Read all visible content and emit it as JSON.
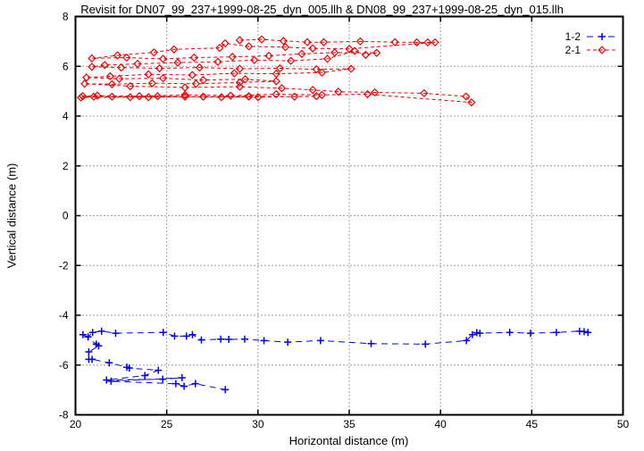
{
  "title": "Revisit for DN07_99_237+1999-08-25_dyn_005.llh & DN08_99_237+1999-08-25_dyn_015.llh",
  "chart_data": {
    "type": "line",
    "title": "Revisit for DN07_99_237+1999-08-25_dyn_005.llh & DN08_99_237+1999-08-25_dyn_015.llh",
    "xlabel": "Horizontal distance (m)",
    "ylabel": "Vertical distance (m)",
    "xlim": [
      20,
      50
    ],
    "ylim": [
      -8,
      8
    ],
    "xticks": [
      20,
      25,
      30,
      35,
      40,
      45,
      50
    ],
    "yticks": [
      -8,
      -6,
      -4,
      -2,
      0,
      2,
      4,
      6,
      8
    ],
    "grid": true,
    "legend_position": "top-right",
    "frame_color": "#000000",
    "grid_color": "#444444",
    "series": [
      {
        "name": "1-2",
        "color": "#0000ee",
        "marker": "plus",
        "linestyle": "dashed",
        "dash": "7,5",
        "points": [
          [
            48.08,
            -4.69
          ],
          [
            47.87,
            -4.66
          ],
          [
            47.62,
            -4.64
          ],
          [
            46.35,
            -4.69
          ],
          [
            44.93,
            -4.72
          ],
          [
            43.79,
            -4.69
          ],
          [
            42.16,
            -4.72
          ],
          [
            41.99,
            -4.7
          ],
          [
            41.75,
            -4.78
          ],
          [
            41.42,
            -5.02
          ],
          [
            39.17,
            -5.16
          ],
          [
            36.2,
            -5.14
          ],
          [
            33.43,
            -5.02
          ],
          [
            31.63,
            -5.08
          ],
          [
            30.33,
            -5.02
          ],
          [
            29.27,
            -4.96
          ],
          [
            28.4,
            -4.97
          ],
          [
            27.96,
            -4.96
          ],
          [
            26.9,
            -4.99
          ],
          [
            26.41,
            -4.78
          ],
          [
            26.08,
            -4.84
          ],
          [
            25.43,
            -4.84
          ],
          [
            24.81,
            -4.69
          ],
          [
            22.2,
            -4.72
          ],
          [
            21.43,
            -4.64
          ],
          [
            20.94,
            -4.69
          ],
          [
            20.69,
            -4.87
          ],
          [
            20.41,
            -4.78
          ],
          [
            21.14,
            -5.16
          ],
          [
            21.27,
            -5.23
          ],
          [
            20.73,
            -5.47
          ],
          [
            20.73,
            -5.77
          ],
          [
            20.91,
            -5.77
          ],
          [
            21.85,
            -5.91
          ],
          [
            22.82,
            -6.09
          ],
          [
            22.95,
            -6.12
          ],
          [
            24.54,
            -6.21
          ],
          [
            23.8,
            -6.42
          ],
          [
            21.7,
            -6.6
          ],
          [
            24.78,
            -6.57
          ],
          [
            25.84,
            -6.51
          ],
          [
            21.95,
            -6.65
          ],
          [
            25.5,
            -6.75
          ],
          [
            25.95,
            -6.85
          ],
          [
            26.57,
            -6.75
          ],
          [
            28.21,
            -6.99
          ]
        ]
      },
      {
        "name": "2-1",
        "color": "#ee0000",
        "marker": "diamond",
        "linestyle": "dashed",
        "dash": "4,3",
        "points": [
          [
            29.0,
            7.05
          ],
          [
            30.2,
            7.08
          ],
          [
            31.4,
            7.02
          ],
          [
            32.7,
            6.97
          ],
          [
            33.6,
            6.97
          ],
          [
            35.6,
            7.0
          ],
          [
            37.5,
            6.97
          ],
          [
            38.7,
            6.96
          ],
          [
            39.3,
            6.96
          ],
          [
            39.7,
            6.96
          ],
          [
            35.0,
            6.7
          ],
          [
            33.0,
            6.72
          ],
          [
            31.5,
            6.77
          ],
          [
            29.5,
            6.8
          ],
          [
            28.2,
            6.92
          ],
          [
            27.9,
            6.74
          ],
          [
            25.4,
            6.68
          ],
          [
            24.3,
            6.56
          ],
          [
            22.3,
            6.44
          ],
          [
            20.9,
            6.32
          ],
          [
            22.8,
            6.35
          ],
          [
            24.8,
            6.3
          ],
          [
            26.5,
            6.35
          ],
          [
            28.6,
            6.38
          ],
          [
            30.6,
            6.42
          ],
          [
            32.4,
            6.5
          ],
          [
            34.2,
            6.55
          ],
          [
            36.5,
            6.54
          ],
          [
            35.9,
            6.46
          ],
          [
            35.3,
            6.62
          ],
          [
            33.8,
            6.3
          ],
          [
            31.8,
            6.22
          ],
          [
            29.8,
            6.25
          ],
          [
            27.8,
            6.18
          ],
          [
            25.6,
            6.15
          ],
          [
            23.4,
            6.1
          ],
          [
            21.6,
            6.05
          ],
          [
            20.9,
            5.98
          ],
          [
            22.5,
            5.95
          ],
          [
            24.6,
            5.92
          ],
          [
            26.8,
            5.95
          ],
          [
            29.0,
            5.9
          ],
          [
            31.2,
            5.92
          ],
          [
            33.2,
            5.88
          ],
          [
            35.1,
            5.9
          ],
          [
            33.5,
            5.75
          ],
          [
            31.0,
            5.7
          ],
          [
            28.7,
            5.72
          ],
          [
            26.4,
            5.65
          ],
          [
            24.0,
            5.68
          ],
          [
            21.9,
            5.6
          ],
          [
            20.6,
            5.55
          ],
          [
            22.4,
            5.5
          ],
          [
            24.8,
            5.52
          ],
          [
            27.0,
            5.45
          ],
          [
            29.3,
            5.48
          ],
          [
            31.0,
            5.4
          ],
          [
            29.0,
            5.35
          ],
          [
            26.6,
            5.3
          ],
          [
            24.2,
            5.32
          ],
          [
            22.0,
            5.28
          ],
          [
            20.5,
            5.3
          ],
          [
            23.0,
            5.2
          ],
          [
            26.0,
            5.15
          ],
          [
            29.0,
            5.18
          ],
          [
            31.3,
            5.12
          ],
          [
            33.0,
            5.05
          ],
          [
            34.4,
            4.98
          ],
          [
            36.4,
            4.95
          ],
          [
            39.1,
            4.92
          ],
          [
            41.4,
            4.79
          ],
          [
            41.7,
            4.55
          ],
          [
            36.0,
            4.88
          ],
          [
            33.5,
            4.85
          ],
          [
            31.0,
            4.88
          ],
          [
            28.5,
            4.82
          ],
          [
            26.0,
            4.85
          ],
          [
            23.5,
            4.8
          ],
          [
            21.2,
            4.82
          ],
          [
            20.4,
            4.8
          ],
          [
            22.0,
            4.78
          ],
          [
            24.5,
            4.8
          ],
          [
            27.0,
            4.78
          ],
          [
            29.5,
            4.8
          ],
          [
            32.0,
            4.78
          ],
          [
            33.2,
            4.8
          ],
          [
            30.0,
            4.76
          ],
          [
            27.0,
            4.78
          ],
          [
            24.0,
            4.76
          ],
          [
            21.0,
            4.78
          ],
          [
            20.3,
            4.75
          ],
          [
            23.0,
            4.76
          ],
          [
            26.0,
            4.78
          ],
          [
            28.0,
            4.76
          ],
          [
            29.5,
            4.78
          ]
        ]
      }
    ]
  }
}
